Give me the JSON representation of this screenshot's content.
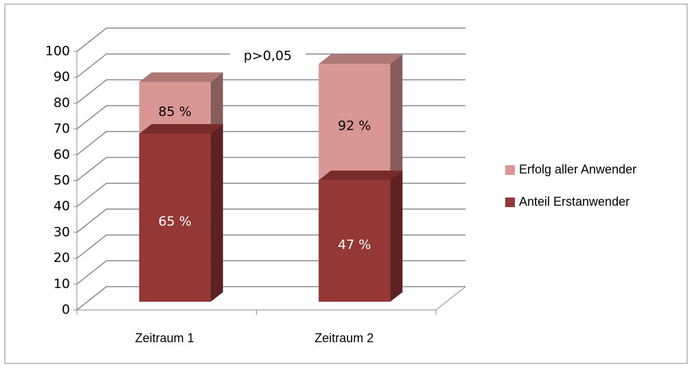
{
  "chart_data": {
    "type": "bar3d",
    "categories": [
      "Zeitraum 1",
      "Zeitraum 2"
    ],
    "series": [
      {
        "name": "Erfolg aller Anwender",
        "color": "#d99694",
        "values": [
          85,
          92
        ],
        "value_labels": [
          "85 %",
          "92 %"
        ]
      },
      {
        "name": "Anteil Erstanwender",
        "color": "#953735",
        "values": [
          65,
          47
        ],
        "value_labels": [
          "65 %",
          "47 %"
        ]
      }
    ],
    "annotation": "p>0,05",
    "ylim": [
      0,
      100
    ],
    "yticks": [
      0,
      10,
      20,
      30,
      40,
      50,
      60,
      70,
      80,
      90,
      100
    ],
    "grid": true,
    "overlap": true,
    "legend": "right"
  }
}
